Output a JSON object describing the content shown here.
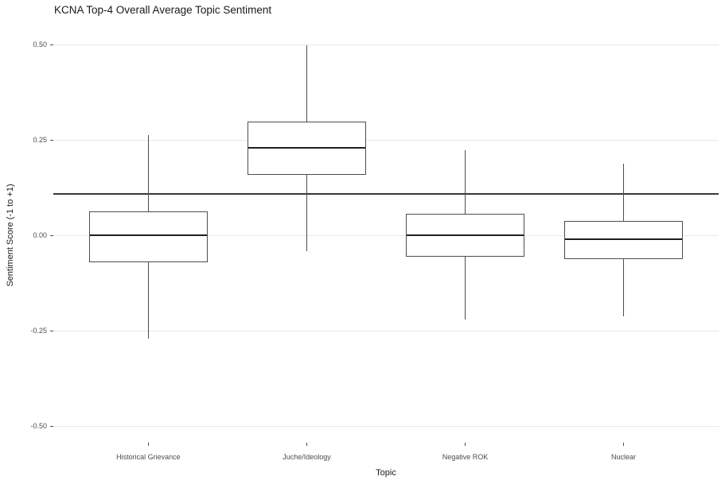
{
  "title": "KCNA Top-4 Overall Average Topic Sentiment",
  "chart_data": {
    "type": "boxplot",
    "title": "KCNA Top-4 Overall Average Topic Sentiment",
    "xlabel": "Topic",
    "ylabel": "Sentiment Score (-1 to +1)",
    "categories": [
      "Historical Grievance",
      "Juche/Ideology",
      "Negative ROK",
      "Nuclear"
    ],
    "boxes": [
      {
        "category": "Historical Grievance",
        "whisker_low": -0.27,
        "q1": -0.07,
        "median": 0.0,
        "q3": 0.065,
        "whisker_high": 0.265
      },
      {
        "category": "Juche/Ideology",
        "whisker_low": -0.04,
        "q1": 0.16,
        "median": 0.23,
        "q3": 0.3,
        "whisker_high": 0.5
      },
      {
        "category": "Negative ROK",
        "whisker_low": -0.22,
        "q1": -0.055,
        "median": 0.0,
        "q3": 0.057,
        "whisker_high": 0.225
      },
      {
        "category": "Nuclear",
        "whisker_low": -0.21,
        "q1": -0.06,
        "median": -0.01,
        "q3": 0.04,
        "whisker_high": 0.19
      }
    ],
    "reference_line_y": 0.11,
    "yticks": [
      0.5,
      0.25,
      0.0,
      -0.25,
      -0.5
    ],
    "ytick_labels": [
      "0.50",
      "0.25",
      "0.00",
      "-0.25",
      "-0.50"
    ],
    "ylim": [
      -0.55,
      0.55
    ],
    "legend": "none",
    "grid": "horizontal-major",
    "colors": {
      "box_border": "#4d4d4d",
      "median": "#1f1f1f",
      "whisker": "#4d4d4d",
      "reference_line": "#383838",
      "gridline": "#e9e9e9",
      "tick_label": "#4d4d4d",
      "title_text": "#1a1a1a",
      "background": "#ffffff"
    }
  }
}
